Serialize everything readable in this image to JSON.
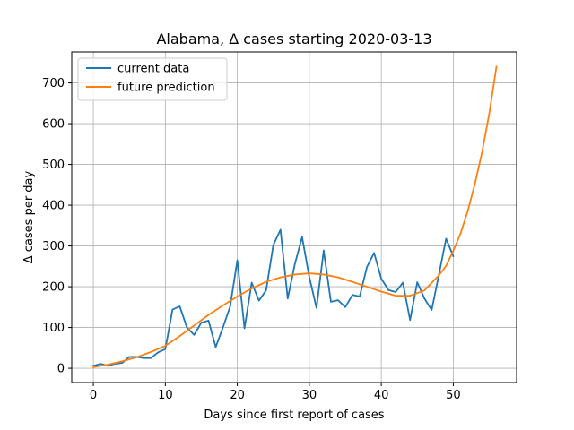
{
  "chart_data": {
    "type": "line",
    "title": "Alabama, Δ cases starting 2020-03-13",
    "xlabel": "Days since first report of cases",
    "ylabel": "Δ cases per day",
    "xlim": [
      -3,
      58.8
    ],
    "ylim": [
      -35,
      776
    ],
    "x_ticks": [
      0,
      10,
      20,
      30,
      40,
      50
    ],
    "y_ticks": [
      0,
      100,
      200,
      300,
      400,
      500,
      600,
      700
    ],
    "grid": true,
    "legend_position": "upper-left",
    "series": [
      {
        "name": "current data",
        "color": "#1f77b4",
        "x": [
          0,
          1,
          2,
          3,
          4,
          5,
          6,
          7,
          8,
          9,
          10,
          11,
          12,
          13,
          14,
          15,
          16,
          17,
          18,
          19,
          20,
          21,
          22,
          23,
          24,
          25,
          26,
          27,
          28,
          29,
          30,
          31,
          32,
          33,
          34,
          35,
          36,
          37,
          38,
          39,
          40,
          41,
          42,
          43,
          44,
          45,
          46,
          47,
          48,
          49,
          50
        ],
        "y": [
          6,
          11,
          6,
          11,
          13,
          28,
          28,
          25,
          25,
          39,
          47,
          144,
          152,
          100,
          82,
          112,
          117,
          52,
          100,
          151,
          265,
          98,
          210,
          166,
          191,
          302,
          340,
          171,
          256,
          322,
          224,
          148,
          289,
          163,
          167,
          150,
          180,
          176,
          248,
          283,
          220,
          192,
          187,
          210,
          118,
          211,
          171,
          143,
          229,
          318,
          275
        ]
      },
      {
        "name": "future prediction",
        "color": "#ff7f0e",
        "x": [
          0,
          2,
          4,
          6,
          8,
          10,
          12,
          14,
          16,
          18,
          20,
          22,
          24,
          26,
          28,
          30,
          32,
          34,
          36,
          38,
          40,
          42,
          44,
          46,
          48,
          49,
          50,
          51,
          52,
          53,
          54,
          55,
          56
        ],
        "y": [
          3,
          9,
          17,
          27,
          40,
          55,
          79,
          105,
          131,
          154,
          176,
          196,
          212,
          223,
          230,
          233,
          230,
          223,
          212,
          200,
          188,
          178,
          178,
          191,
          228,
          251,
          288,
          330,
          385,
          452,
          530,
          625,
          740
        ]
      }
    ]
  }
}
